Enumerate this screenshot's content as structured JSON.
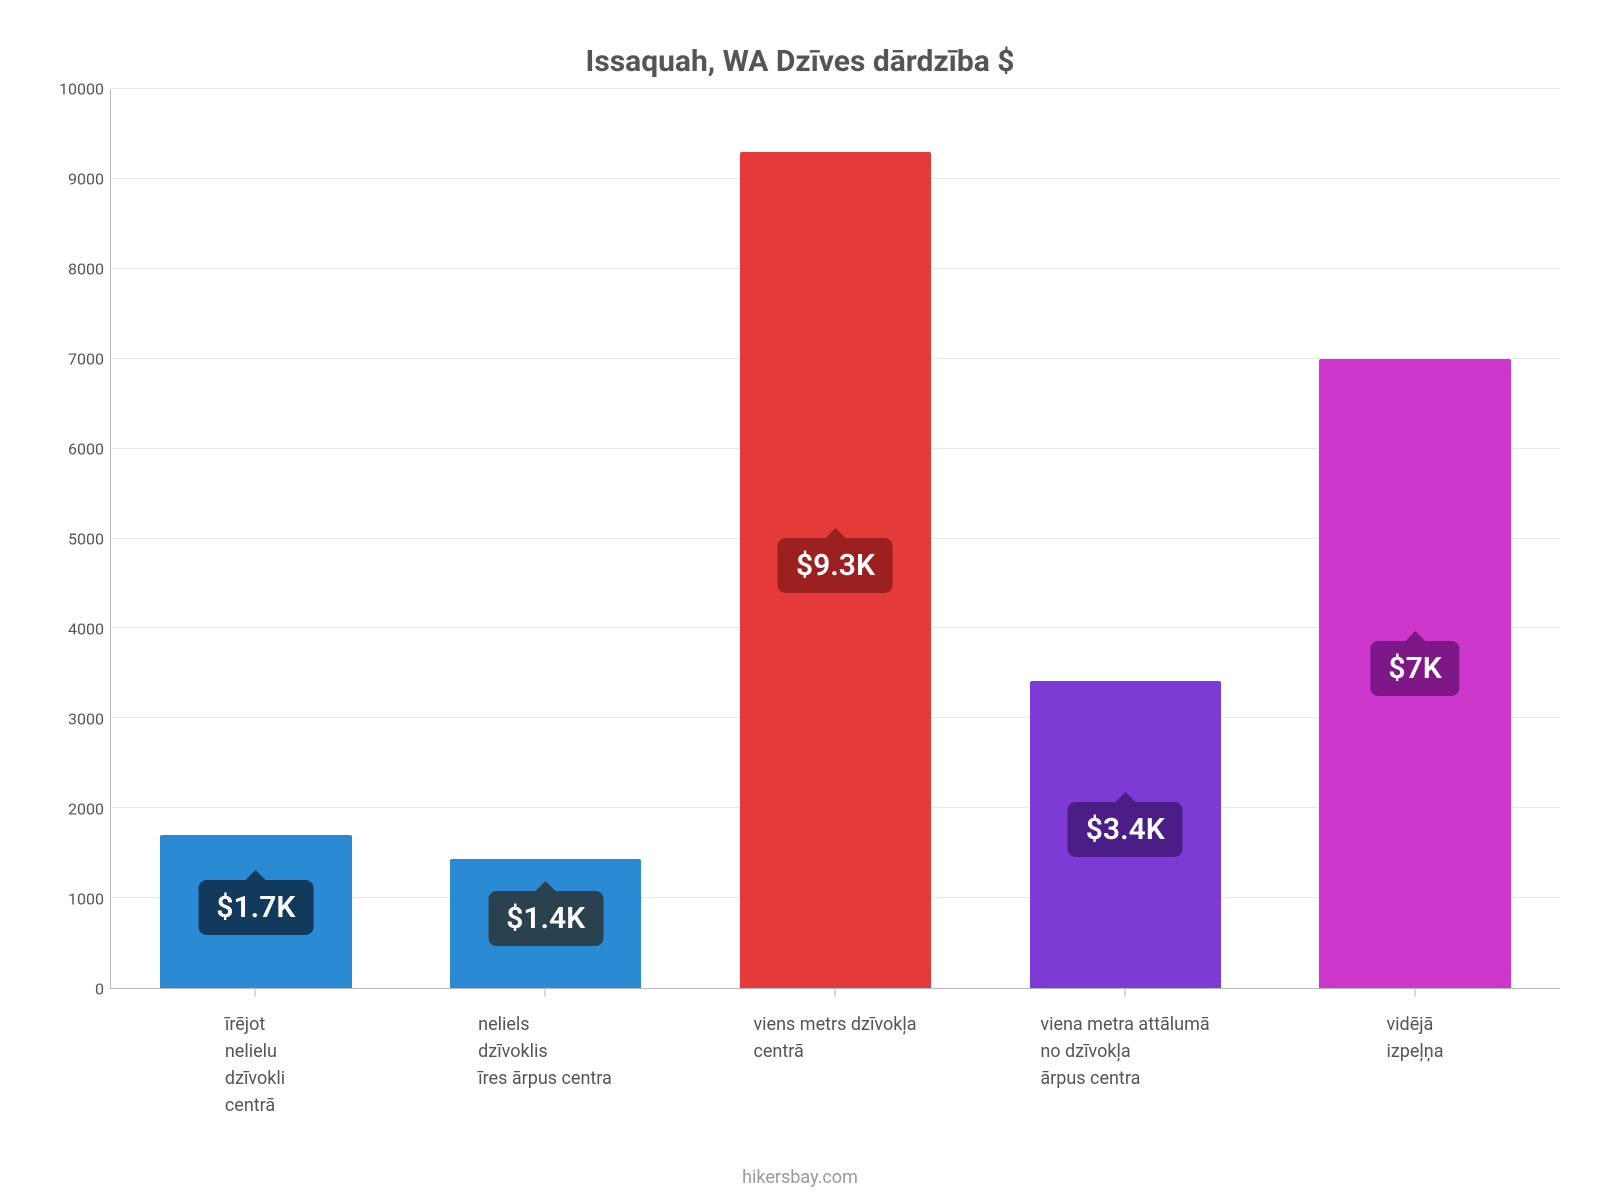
{
  "chart": {
    "type": "bar",
    "title": "Issaquah, WA Dzīves dārdzība $",
    "title_fontsize": 30,
    "title_color": "#555555",
    "background_color": "#ffffff",
    "axis_color": "#b7b7b7",
    "grid_color": "#e8e8e8",
    "tick_font_color": "#555555",
    "tick_fontsize": 16,
    "label_font_color": "#555555",
    "label_fontsize": 18,
    "value_label_fontsize": 30,
    "value_label_text_color": "#ffffff",
    "ylim": [
      0,
      10000
    ],
    "ytick_step": 1000,
    "yticks": [
      0,
      1000,
      2000,
      3000,
      4000,
      5000,
      6000,
      7000,
      8000,
      9000,
      10000
    ],
    "bar_width_pct": 66,
    "categories": [
      "īrējot\nnelielu\ndzīvokli\ncentrā",
      "neliels\ndzīvoklis\nīres ārpus centra",
      "viens metrs dzīvokļa\ncentrā",
      "viena metra attālumā\nno dzīvokļa\nārpus centra",
      "vidējā\nizpeļņa"
    ],
    "values": [
      1700,
      1440,
      9300,
      3420,
      7000
    ],
    "value_labels": [
      "$1.7K",
      "$1.4K",
      "$9.3K",
      "$3.4K",
      "$7K"
    ],
    "bar_colors": [
      "#2a8ad4",
      "#2a8ad4",
      "#e43a3a",
      "#7c3bd4",
      "#cd37cc"
    ],
    "tag_bg_colors": [
      "#123a5c",
      "#2a4250",
      "#9d2020",
      "#4a1e86",
      "#7e1787"
    ],
    "footer": "hikersbay.com",
    "footer_color": "#999999",
    "footer_fontsize": 18
  }
}
